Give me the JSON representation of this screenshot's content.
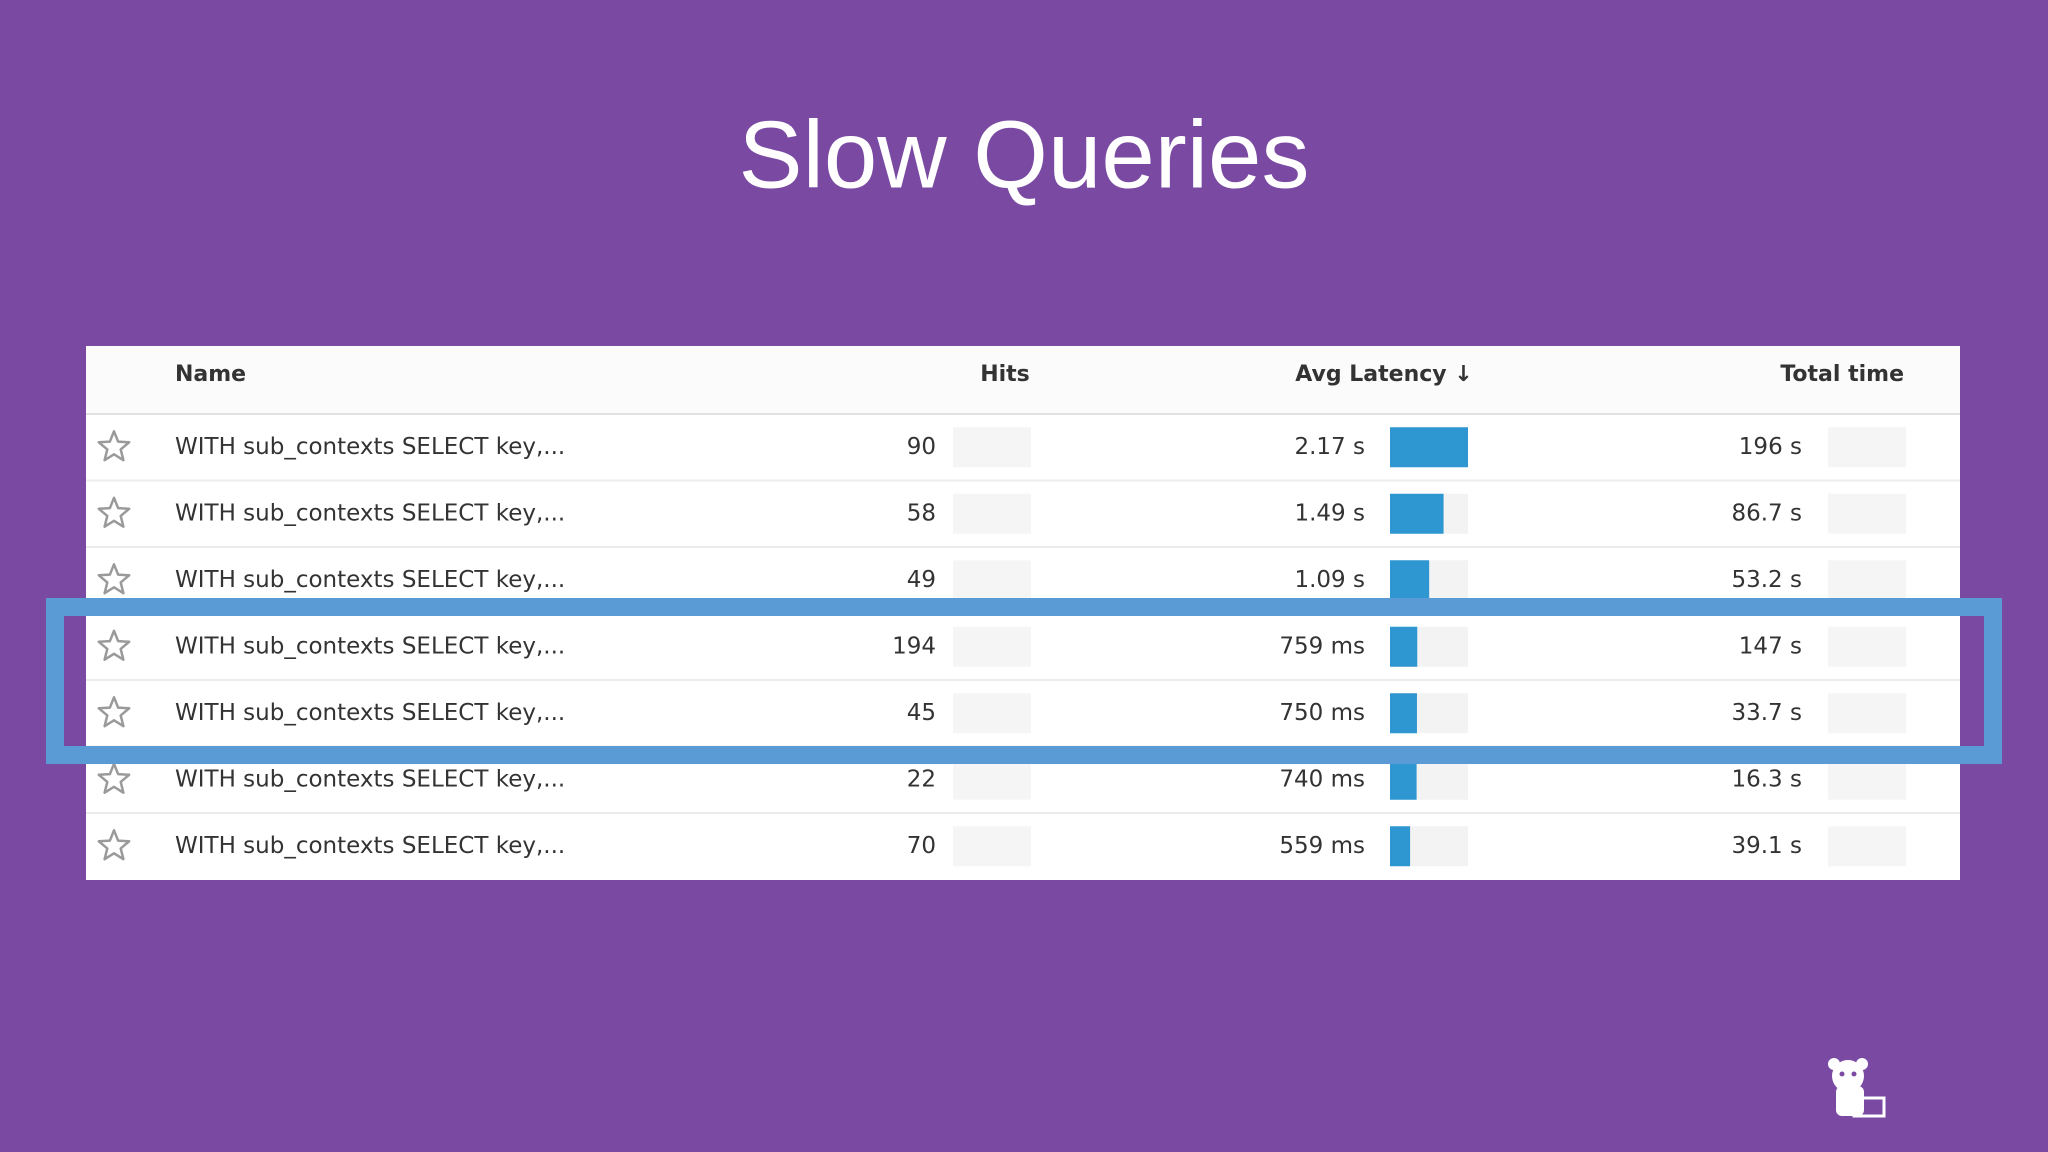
{
  "title": "Slow Queries",
  "table": {
    "headers": {
      "name": "Name",
      "hits": "Hits",
      "latency": "Avg Latency ↓",
      "total": "Total time"
    },
    "rows": [
      {
        "name": "WITH sub_contexts SELECT key,...",
        "hits": 90,
        "latency": {
          "value": 2.17,
          "label": "2.17 s"
        },
        "total": "196 s"
      },
      {
        "name": "WITH sub_contexts SELECT key,...",
        "hits": 58,
        "latency": {
          "value": 1.49,
          "label": "1.49 s"
        },
        "total": "86.7 s"
      },
      {
        "name": "WITH sub_contexts SELECT key,...",
        "hits": 49,
        "latency": {
          "value": 1.09,
          "label": "1.09 s"
        },
        "total": "53.2 s"
      },
      {
        "name": "WITH sub_contexts SELECT key,...",
        "hits": 194,
        "latency": {
          "value": 0.759,
          "label": "759 ms"
        },
        "total": "147 s"
      },
      {
        "name": "WITH sub_contexts SELECT key,...",
        "hits": 45,
        "latency": {
          "value": 0.75,
          "label": "750 ms"
        },
        "total": "33.7 s"
      },
      {
        "name": "WITH sub_contexts SELECT key,...",
        "hits": 22,
        "latency": {
          "value": 0.74,
          "label": "740 ms"
        },
        "total": "16.3 s"
      },
      {
        "name": "WITH sub_contexts SELECT key,...",
        "hits": 70,
        "latency": {
          "value": 0.559,
          "label": "559 ms"
        },
        "total": "39.1 s"
      }
    ]
  }
}
